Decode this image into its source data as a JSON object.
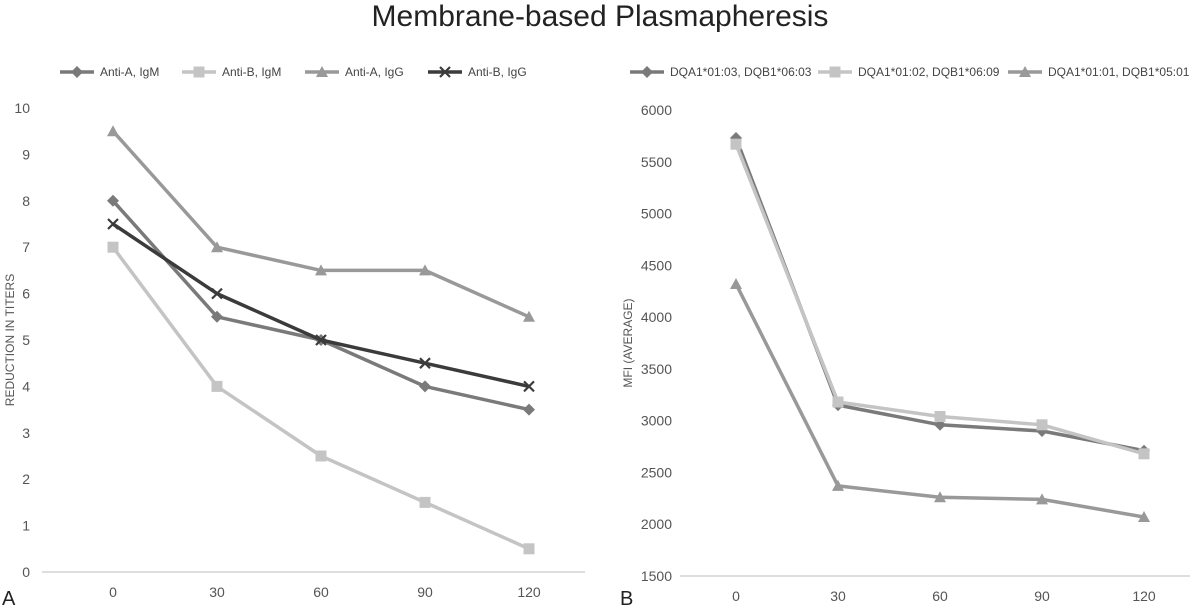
{
  "title": "Membrane-based Plasmapheresis",
  "chart_data": [
    {
      "panel": "A",
      "type": "line",
      "title": "",
      "xlabel": "",
      "ylabel": "REDUCTION IN TITERS",
      "x": [
        0,
        30,
        60,
        90,
        120
      ],
      "ylim": [
        0,
        10
      ],
      "yticks": [
        0,
        1,
        2,
        3,
        4,
        5,
        6,
        7,
        8,
        9,
        10
      ],
      "grid": false,
      "legend": "top",
      "series": [
        {
          "name": "Anti-A, IgM",
          "marker": "diamond",
          "color": "#7a7a7a",
          "values": [
            8,
            5.5,
            5,
            4,
            3.5
          ]
        },
        {
          "name": "Anti-B, IgM",
          "marker": "square",
          "color": "#c4c4c4",
          "values": [
            7,
            4,
            2.5,
            1.5,
            0.5
          ]
        },
        {
          "name": "Anti-A, IgG",
          "marker": "triangle",
          "color": "#999999",
          "values": [
            9.5,
            7,
            6.5,
            6.5,
            5.5
          ]
        },
        {
          "name": "Anti-B, IgG",
          "marker": "x",
          "color": "#3b3b3b",
          "values": [
            7.5,
            6,
            5,
            4.5,
            4
          ]
        }
      ]
    },
    {
      "panel": "B",
      "type": "line",
      "title": "",
      "xlabel": "",
      "ylabel": "MFI (AVERAGE)",
      "x": [
        0,
        30,
        60,
        90,
        120
      ],
      "ylim": [
        1500,
        6000
      ],
      "yticks": [
        1500,
        2000,
        2500,
        3000,
        3500,
        4000,
        4500,
        5000,
        5500,
        6000
      ],
      "grid": false,
      "legend": "top",
      "series": [
        {
          "name": "DQA1*01:03, DQB1*06:03",
          "marker": "diamond",
          "color": "#7a7a7a",
          "values": [
            5730,
            3150,
            2960,
            2900,
            2710
          ]
        },
        {
          "name": "DQA1*01:02, DQB1*06:09",
          "marker": "square",
          "color": "#c4c4c4",
          "values": [
            5670,
            3180,
            3040,
            2960,
            2680
          ]
        },
        {
          "name": "DQA1*01:01, DQB1*05:01",
          "marker": "triangle",
          "color": "#999999",
          "values": [
            4320,
            2370,
            2260,
            2240,
            2070
          ]
        }
      ]
    }
  ]
}
